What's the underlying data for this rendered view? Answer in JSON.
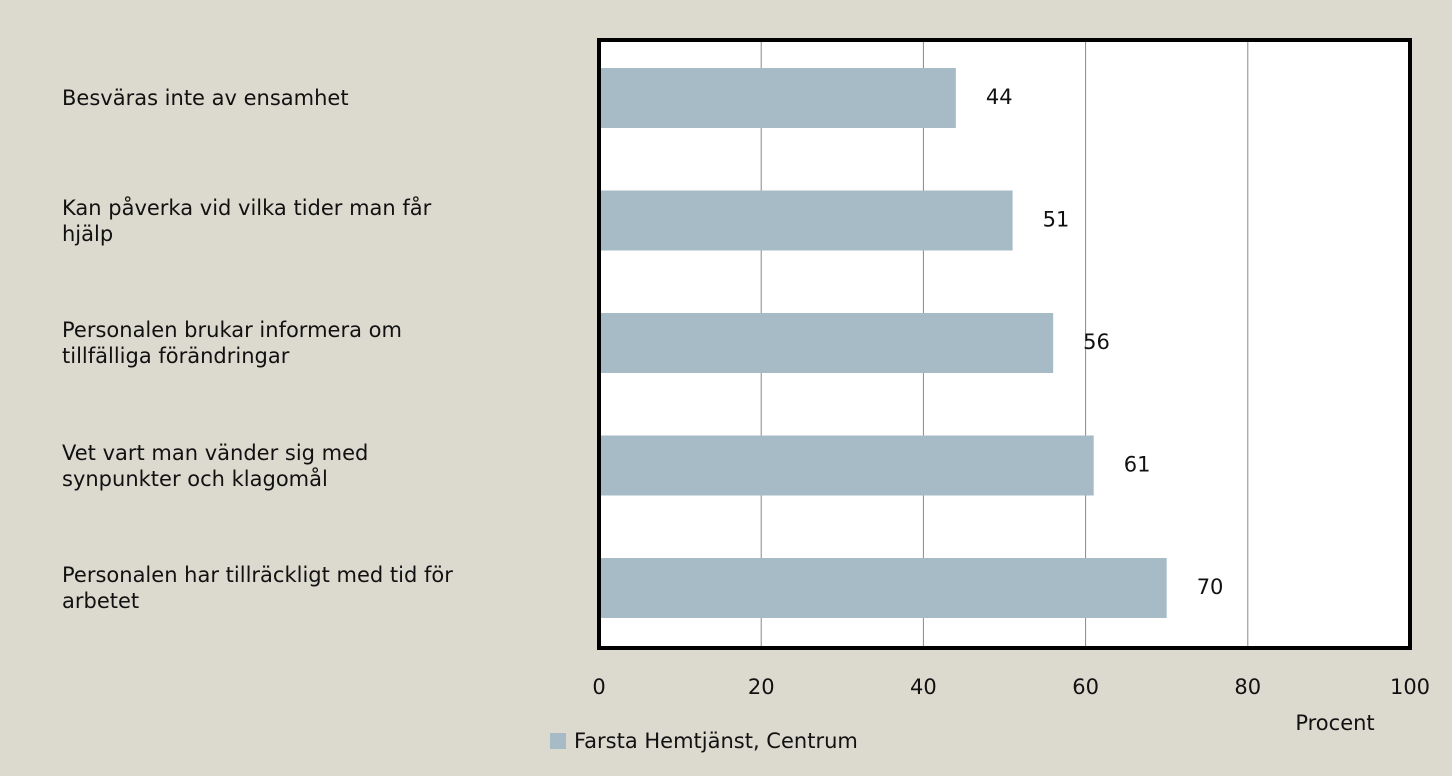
{
  "chart_data": {
    "type": "barh",
    "categories": [
      "Besväras inte av ensamhet",
      "Kan påverka vid vilka tider man får\nhjälp",
      "Personalen brukar informera om\ntillfälliga förändringar",
      "Vet vart man vänder sig med\nsynpunkter och klagomål",
      "Personalen har tillräckligt med tid för\narbetet"
    ],
    "series": [
      {
        "name": "Farsta Hemtjänst,  Centrum",
        "color": "#a7bbc6",
        "values": [
          44,
          51,
          56,
          61,
          70
        ]
      }
    ],
    "xlim": [
      0,
      100
    ],
    "xticks": [
      0,
      20,
      40,
      60,
      80,
      100
    ],
    "xlabel": "Procent",
    "grid": true
  }
}
